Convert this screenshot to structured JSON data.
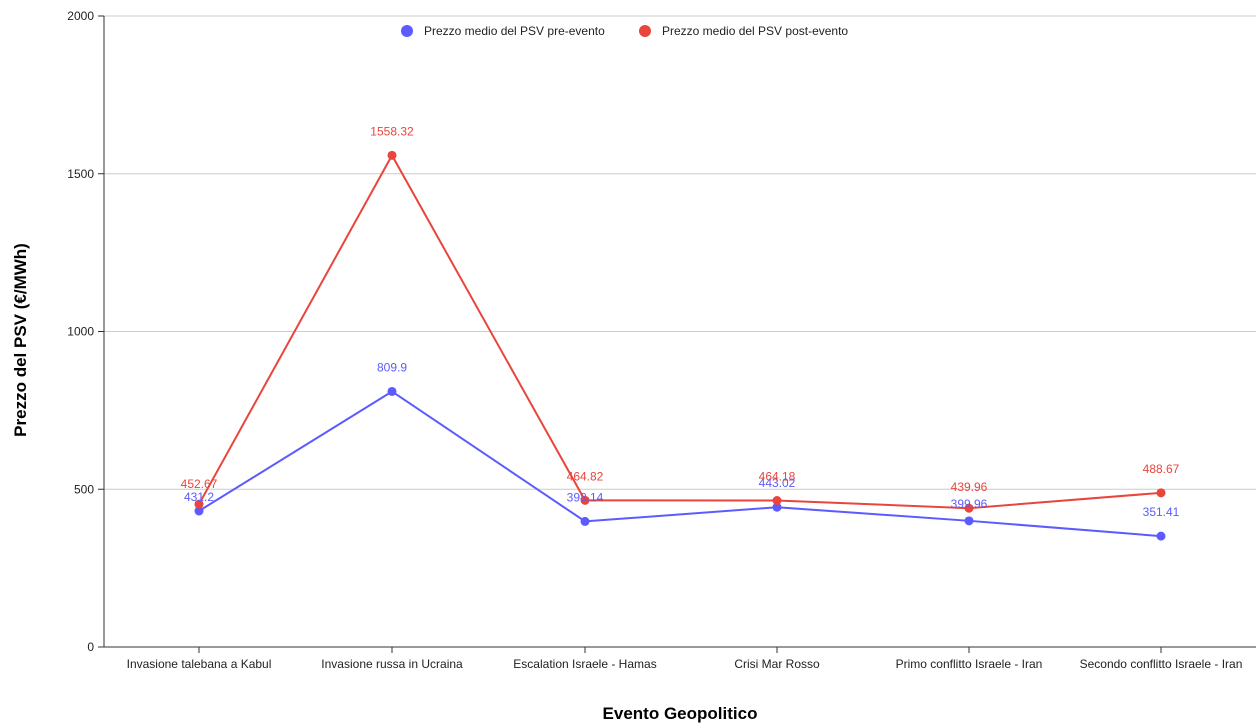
{
  "chart_data": {
    "type": "line",
    "title": "",
    "xlabel": "Evento Geopolitico",
    "ylabel": "Prezzo del PSV (€/MWh)",
    "ylim": [
      0,
      2000
    ],
    "yticks": [
      0,
      500,
      1000,
      1500,
      2000
    ],
    "grid": true,
    "legend_position": "top-center",
    "categories": [
      "Invasione talebana a Kabul",
      "Invasione russa in Ucraina",
      "Escalation Israele - Hamas",
      "Crisi Mar Rosso",
      "Primo conflitto Israele - Iran",
      "Secondo conflitto Israele - Iran"
    ],
    "series": [
      {
        "name": "Prezzo medio del PSV pre-evento",
        "color": "#5b5bff",
        "values": [
          431.2,
          809.9,
          398.14,
          443.02,
          399.96,
          351.41
        ],
        "labels": [
          "431.2",
          "809.9",
          "398.14",
          "443.02",
          "399.96",
          "351.41"
        ]
      },
      {
        "name": "Prezzo medio del PSV post-evento",
        "color": "#e8453c",
        "values": [
          452.67,
          1558.32,
          464.82,
          464.18,
          439.96,
          488.67
        ],
        "labels": [
          "452.67",
          "1558.32",
          "464.82",
          "464.18",
          "439.96",
          "488.67"
        ]
      }
    ]
  }
}
